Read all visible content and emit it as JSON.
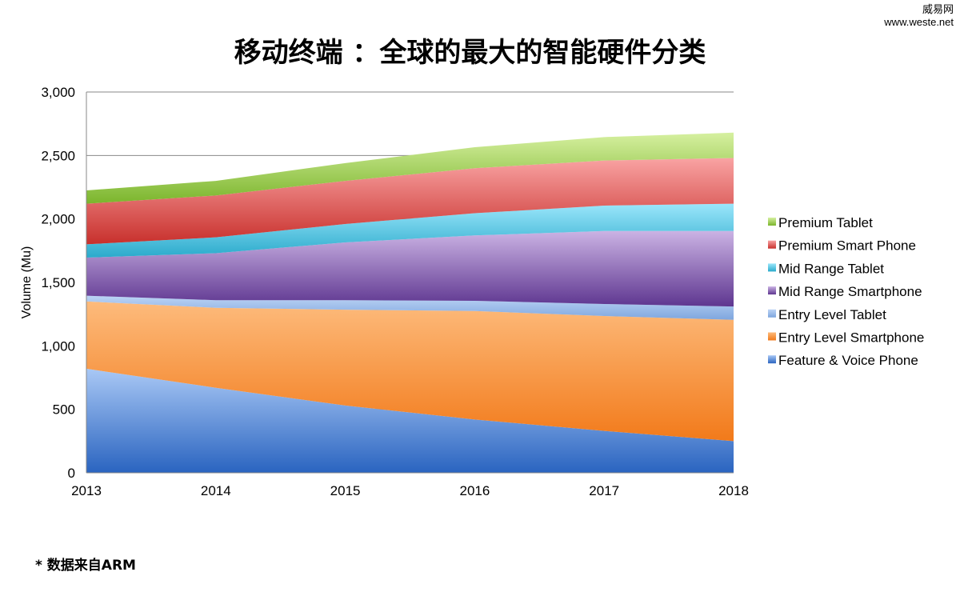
{
  "watermark": {
    "line1": "威易网",
    "line2": "www.weste.net"
  },
  "footnote": "* 数据来自ARM",
  "chart_data": {
    "type": "area",
    "stacked": true,
    "title": "移动终端 ：全球的最大的智能硬件分类",
    "xlabel": "",
    "ylabel": "Volume (Mu)",
    "x": [
      2013,
      2014,
      2015,
      2016,
      2017,
      2018
    ],
    "ylim": [
      0,
      3000
    ],
    "yticks": [
      0,
      500,
      1000,
      1500,
      2000,
      2500,
      3000
    ],
    "ytick_labels": [
      "0",
      "500",
      "1,000",
      "1,500",
      "2,000",
      "2,500",
      "3,000"
    ],
    "grid": "horizontal",
    "legend": "right",
    "series": [
      {
        "name": "Feature & Voice Phone",
        "values": [
          820,
          670,
          530,
          420,
          330,
          250
        ],
        "color": "#2a64c0",
        "light": "#a9c8f5"
      },
      {
        "name": "Entry Level Smartphone",
        "values": [
          530,
          630,
          755,
          855,
          905,
          955
        ],
        "color": "#f27a1a",
        "light": "#fdbb7c"
      },
      {
        "name": "Entry Level Tablet",
        "values": [
          45,
          60,
          75,
          80,
          95,
          105
        ],
        "color": "#7ea6de",
        "light": "#bcd4f5"
      },
      {
        "name": "Mid Range Smartphone",
        "values": [
          300,
          370,
          455,
          515,
          575,
          595
        ],
        "color": "#5e3690",
        "light": "#cbb3e4"
      },
      {
        "name": "Mid Range Tablet",
        "values": [
          105,
          125,
          145,
          175,
          200,
          215
        ],
        "color": "#2aaacb",
        "light": "#9be6fb"
      },
      {
        "name": "Premium Smart Phone",
        "values": [
          320,
          330,
          340,
          355,
          355,
          360
        ],
        "color": "#c8302c",
        "light": "#f9a3a3"
      },
      {
        "name": "Premium Tablet",
        "values": [
          105,
          115,
          140,
          165,
          185,
          200
        ],
        "color": "#7bb52c",
        "light": "#d6f0a0"
      }
    ]
  }
}
